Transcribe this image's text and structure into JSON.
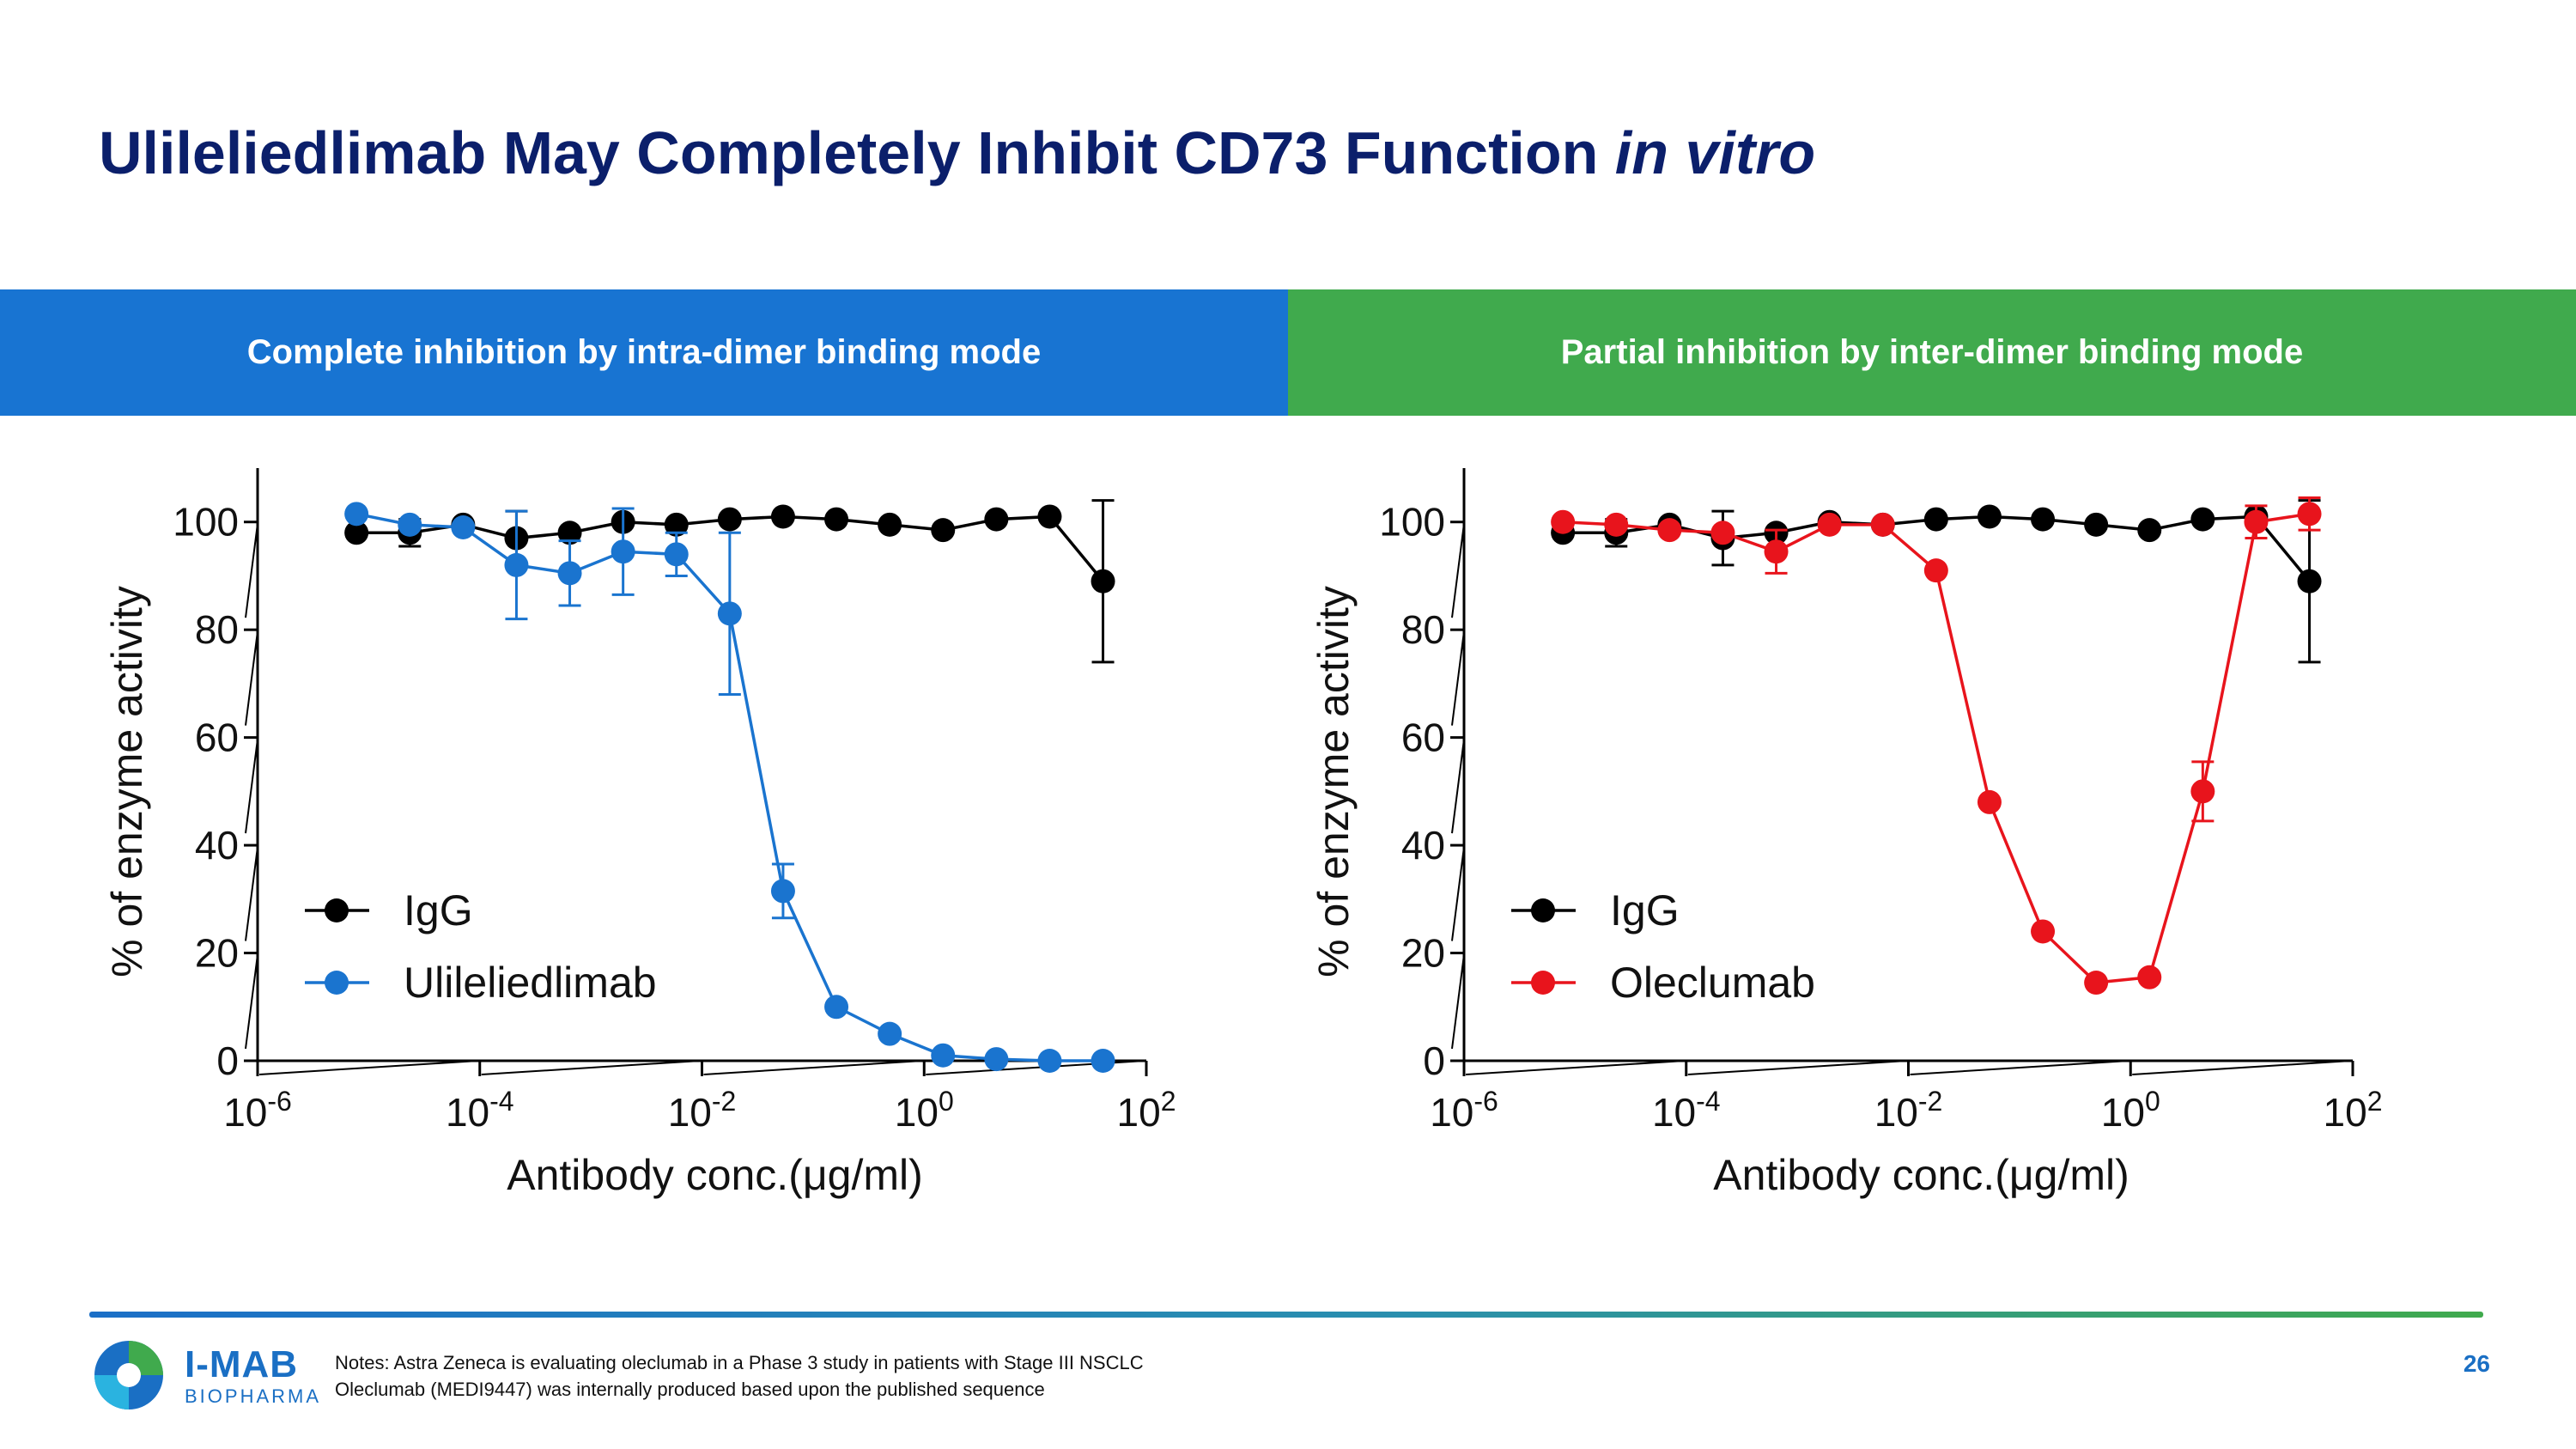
{
  "slide": {
    "title_main": "Ulileliedlimab May Completely Inhibit CD73 Function",
    "title_italic": "in vitro",
    "page_number": "26"
  },
  "banners": {
    "left": "Complete inhibition by intra-dimer binding mode",
    "right": "Partial inhibition by inter-dimer binding mode"
  },
  "footer": {
    "brand_name": "I-MAB",
    "brand_sub": "BIOPHARMA",
    "notes_line1": "Notes: Astra Zeneca is evaluating oleclumab in a Phase 3 study in patients with Stage III NSCLC",
    "notes_line2": "Oleclumab (MEDI9447) was internally produced based upon the published sequence"
  },
  "colors": {
    "title": "#0b1f6b",
    "banner_left": "#1874d2",
    "banner_right": "#40aa4d",
    "igg": "#000000",
    "ulileliedlimab": "#1a74cf",
    "oleclumab": "#e8141c"
  },
  "chart_data": [
    {
      "type": "line",
      "title": "",
      "xlabel": "Antibody conc.(μg/ml)",
      "ylabel": "% of enzyme activity",
      "xscale": "log10",
      "xlim": [
        -6,
        2
      ],
      "ylim": [
        0,
        110
      ],
      "x_tick_exponents": [
        "-6",
        "-4",
        "-2",
        "0",
        "2"
      ],
      "y_ticks": [
        "0",
        "20",
        "40",
        "60",
        "80",
        "100"
      ],
      "legend_position": "bottom-left",
      "series": [
        {
          "name": "IgG",
          "color": "#000000",
          "log_x": [
            -5.11,
            -4.63,
            -4.15,
            -3.67,
            -3.19,
            -2.71,
            -2.23,
            -1.75,
            -1.27,
            -0.79,
            -0.31,
            0.17,
            0.65,
            1.13,
            1.61
          ],
          "values": [
            98,
            98,
            99.5,
            97,
            98,
            100,
            99.5,
            100.5,
            101,
            100.5,
            99.5,
            98.5,
            100.5,
            101,
            89
          ],
          "errors": [
            0,
            2.5,
            1,
            5,
            1,
            1,
            0.5,
            0.5,
            0.5,
            0.5,
            1,
            0.5,
            0.5,
            0.5,
            15
          ]
        },
        {
          "name": "Ulileliedlimab",
          "color": "#1a74cf",
          "log_x": [
            -5.11,
            -4.63,
            -4.15,
            -3.67,
            -3.19,
            -2.71,
            -2.23,
            -1.75,
            -1.27,
            -0.79,
            -0.31,
            0.17,
            0.65,
            1.13,
            1.61
          ],
          "values": [
            101.5,
            99.5,
            99,
            92,
            90.5,
            94.5,
            94,
            83,
            31.5,
            10,
            5,
            1,
            0.3,
            0,
            0
          ],
          "errors": [
            0.5,
            1,
            1,
            10,
            6,
            8,
            4,
            15,
            5,
            0.5,
            0.5,
            0.5,
            0.3,
            0,
            0
          ]
        }
      ]
    },
    {
      "type": "line",
      "title": "",
      "xlabel": "Antibody conc.(μg/ml)",
      "ylabel": "% of enzyme activity",
      "xscale": "log10",
      "xlim": [
        -6,
        2
      ],
      "ylim": [
        0,
        110
      ],
      "x_tick_exponents": [
        "-6",
        "-4",
        "-2",
        "0",
        "2"
      ],
      "y_ticks": [
        "0",
        "20",
        "40",
        "60",
        "80",
        "100"
      ],
      "legend_position": "bottom-left",
      "series": [
        {
          "name": "IgG",
          "color": "#000000",
          "log_x": [
            -5.11,
            -4.63,
            -4.15,
            -3.67,
            -3.19,
            -2.71,
            -2.23,
            -1.75,
            -1.27,
            -0.79,
            -0.31,
            0.17,
            0.65,
            1.13,
            1.61
          ],
          "values": [
            98,
            98,
            99.5,
            97,
            98,
            100,
            99.5,
            100.5,
            101,
            100.5,
            99.5,
            98.5,
            100.5,
            101,
            89
          ],
          "errors": [
            0,
            2.5,
            1,
            5,
            1,
            1,
            0.5,
            0.5,
            0.5,
            0.5,
            1,
            0.5,
            0.5,
            0.5,
            15
          ]
        },
        {
          "name": "Oleclumab",
          "color": "#e8141c",
          "log_x": [
            -5.11,
            -4.63,
            -4.15,
            -3.67,
            -3.19,
            -2.71,
            -2.23,
            -1.75,
            -1.27,
            -0.79,
            -0.31,
            0.17,
            0.65,
            1.13,
            1.61
          ],
          "values": [
            100,
            99.5,
            98.5,
            98,
            94.5,
            99.5,
            99.5,
            91,
            48,
            24,
            14.5,
            15.5,
            50,
            100,
            101.5
          ],
          "errors": [
            1,
            1,
            1,
            1,
            4,
            1,
            1,
            0.5,
            0.5,
            0.5,
            0.5,
            0.5,
            5.5,
            3,
            3
          ]
        }
      ]
    }
  ]
}
